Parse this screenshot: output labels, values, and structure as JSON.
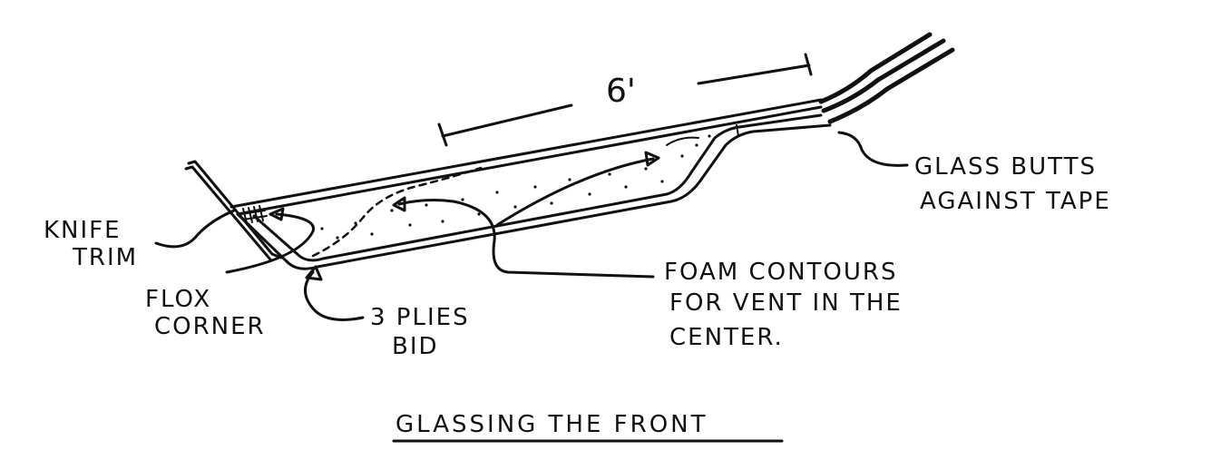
{
  "dimension": "6'",
  "labels": {
    "knife_trim": [
      "KNIFE",
      "TRIM"
    ],
    "flox_corner": [
      "FLOX",
      "CORNER"
    ],
    "plies": [
      "3 PLIES",
      "BID"
    ],
    "foam": [
      "FOAM CONTOURS",
      "FOR VENT IN THE",
      "CENTER."
    ],
    "glass_butts": [
      "GLASS BUTTS",
      "AGAINST TAPE"
    ]
  },
  "title": "GLASSING THE FRONT",
  "colors": {
    "ink": "#111111",
    "paper": "#ffffff"
  }
}
